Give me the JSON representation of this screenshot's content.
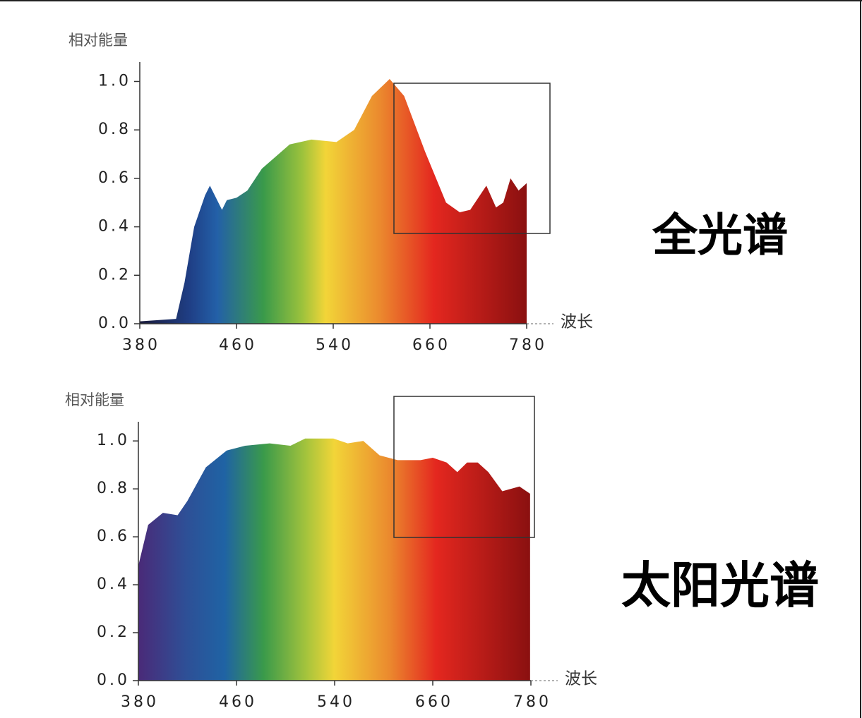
{
  "chart_data": [
    {
      "type": "area",
      "y_label": "相对能量",
      "x_label": "波长",
      "annotation": "全光谱",
      "x": [
        380,
        410,
        417,
        425,
        434,
        438,
        442,
        448,
        452,
        460,
        469,
        481,
        504,
        522,
        544,
        566,
        588,
        610,
        628,
        654,
        680,
        697,
        710,
        730,
        742,
        751,
        760,
        770,
        780
      ],
      "values": [
        0.01,
        0.02,
        0.17,
        0.4,
        0.53,
        0.57,
        0.53,
        0.47,
        0.51,
        0.52,
        0.55,
        0.64,
        0.74,
        0.76,
        0.75,
        0.8,
        0.94,
        1.01,
        0.94,
        0.71,
        0.5,
        0.46,
        0.47,
        0.57,
        0.48,
        0.5,
        0.6,
        0.55,
        0.58
      ],
      "xlim": [
        380,
        780
      ],
      "ylim": [
        0,
        1.08
      ],
      "xticks": [
        380,
        460,
        540,
        660,
        780
      ],
      "yticks": [
        {
          "value": 0,
          "label": "0.0"
        },
        0.2,
        0.4,
        0.6,
        0.8,
        {
          "value": 1,
          "label": "1.0"
        }
      ]
    },
    {
      "type": "area",
      "y_label": "相对能量",
      "x_label": "波长",
      "annotation": "太阳光谱",
      "x": [
        380,
        388,
        400,
        412,
        420,
        435,
        452,
        467,
        487,
        504,
        516,
        539,
        556,
        575,
        595,
        617,
        645,
        660,
        677,
        690,
        702,
        715,
        728,
        745,
        766,
        779
      ],
      "values": [
        0.48,
        0.65,
        0.7,
        0.69,
        0.75,
        0.89,
        0.96,
        0.98,
        0.99,
        0.98,
        1.01,
        1.01,
        0.99,
        1.0,
        0.94,
        0.92,
        0.92,
        0.93,
        0.91,
        0.87,
        0.91,
        0.91,
        0.87,
        0.79,
        0.81,
        0.78
      ],
      "xlim": [
        380,
        780
      ],
      "ylim": [
        0,
        1.08
      ],
      "xticks": [
        380,
        460,
        540,
        660,
        780
      ],
      "yticks": [
        {
          "value": 0,
          "label": "0.0"
        },
        0.2,
        0.4,
        0.6,
        0.8,
        {
          "value": 1,
          "label": "1.0"
        }
      ]
    }
  ]
}
